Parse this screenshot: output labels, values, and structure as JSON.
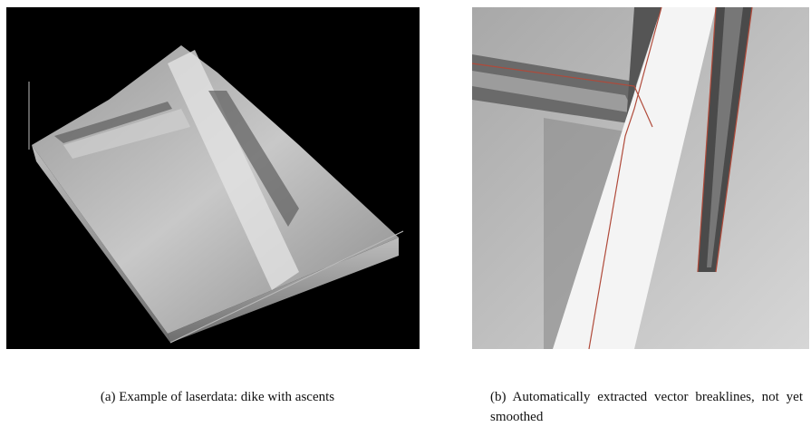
{
  "figure": {
    "panels": [
      {
        "caption": "(a) Example of laserdata: dike with ascents"
      },
      {
        "caption": "(b) Automatically extracted vector breaklines, not yet smoothed"
      }
    ]
  }
}
